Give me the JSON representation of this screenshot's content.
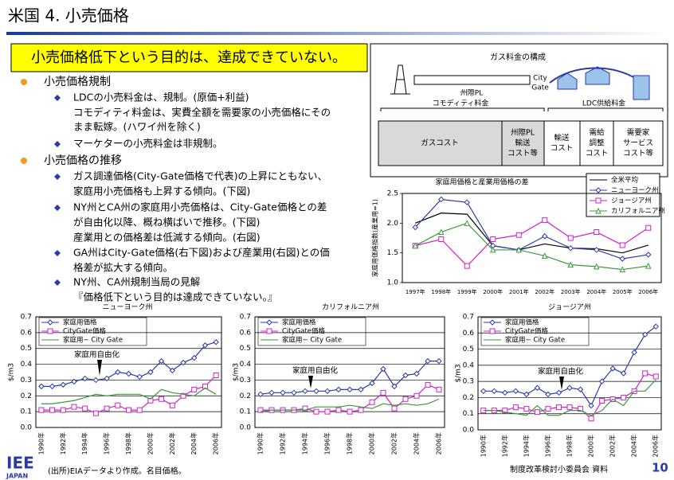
{
  "header": {
    "title": "米国 4. 小売価格",
    "headline": "小売価格低下という目的は、達成できていない。"
  },
  "bullets": [
    {
      "text": "小売価格規制",
      "sub": [
        [
          "LDCの小売料金は、規制。(原価+利益)",
          "コモディティ料金は、実費全額を需要家の小売価格にその",
          "まま転嫁。(ハワイ州を除く)"
        ],
        [
          "マーケターの小売料金は非規制。"
        ]
      ]
    },
    {
      "text": "小売価格の推移",
      "sub": [
        [
          "ガス調達価格(City-Gate価格で代表)の上昇にともない、",
          "家庭用小売価格も上昇する傾向。(下図)"
        ],
        [
          "NY州とCA州の家庭用小売価格は、City-Gate価格との差",
          "が自由化以降、概ね横ばいで推移。(下図)",
          "産業用との価格差は低減する傾向。(右図)"
        ],
        [
          "GA州はCity-Gate価格(右下図)および産業用(右図)との価",
          "格差が拡大する傾向。"
        ],
        [
          "NY州、CA州規制当局の見解",
          "『価格低下という目的は達成できていない。』"
        ]
      ]
    }
  ],
  "diagram": {
    "title": "ガス料金の構成",
    "pipe": "州際PL",
    "gate": [
      "City",
      "Gate"
    ],
    "commodity": "コモディティ料金",
    "ldc": "LDC供給料金",
    "boxes": [
      [
        "ガスコスト"
      ],
      [
        "州際PL",
        "輸送",
        "コスト等"
      ],
      [
        "輸送",
        "コスト"
      ],
      [
        "需給",
        "調整",
        "コスト"
      ],
      [
        "需要家",
        "サービス",
        "コスト等"
      ]
    ]
  },
  "chart_data": [
    {
      "type": "line",
      "title": "家庭用価格と産業用価格の差",
      "y_label": "家庭用価格指数(産業用=1)",
      "categories": [
        "1997年",
        "1998年",
        "1999年",
        "2000年",
        "2001年",
        "2002年",
        "2003年",
        "2004年",
        "2005年",
        "2006年"
      ],
      "ylim": [
        1,
        2.5
      ],
      "yticks": [
        {
          "value": 1,
          "label": "1.0"
        },
        1.5,
        {
          "value": 2,
          "label": "2.0"
        },
        2.5
      ],
      "grid": false,
      "series": [
        {
          "name": "全米平均",
          "color": "#000000",
          "marker": "none",
          "values": [
            2.0,
            2.17,
            2.15,
            1.62,
            1.55,
            1.65,
            1.58,
            1.57,
            1.5,
            1.63
          ]
        },
        {
          "name": "ニューヨーク州",
          "color": "#2b3aa8",
          "marker": "diamond",
          "values": [
            1.93,
            2.4,
            2.35,
            1.62,
            1.55,
            1.78,
            1.58,
            1.55,
            1.4,
            1.47
          ]
        },
        {
          "name": "ジョージア州",
          "color": "#d020c8",
          "marker": "square",
          "values": [
            1.62,
            1.73,
            1.28,
            1.73,
            1.8,
            2.05,
            1.75,
            1.85,
            1.63,
            1.92
          ]
        },
        {
          "name": "カリフォルニア州",
          "color": "#3a9a3a",
          "marker": "triangle",
          "values": [
            1.62,
            1.85,
            2.0,
            1.55,
            1.55,
            1.45,
            1.3,
            1.27,
            1.22,
            1.28
          ]
        }
      ]
    },
    {
      "type": "line",
      "title": "ニューヨーク州",
      "y_label": "$/m3",
      "annotation": "家庭用自由化",
      "categories": [
        "1990年",
        null,
        "1992年",
        null,
        "1994年",
        null,
        "1996年",
        null,
        "1998年",
        null,
        "2000年",
        null,
        "2002年",
        null,
        "2004年",
        null,
        "2006年"
      ],
      "ylim": [
        0,
        0.7
      ],
      "yticks": [
        {
          "value": 0,
          "label": "0.0"
        },
        0.1,
        0.2,
        0.3,
        0.4,
        0.5,
        0.6,
        0.7
      ],
      "grid": true,
      "series": [
        {
          "name": "家庭用価格",
          "color": "#2b3aa8",
          "marker": "diamond",
          "values": [
            0.26,
            0.26,
            0.27,
            0.29,
            0.31,
            0.3,
            0.31,
            0.35,
            0.34,
            0.32,
            0.35,
            0.42,
            0.36,
            0.41,
            0.44,
            0.52,
            0.54
          ]
        },
        {
          "name": "CityGate価格",
          "color": "#d020c8",
          "marker": "square",
          "values": [
            0.11,
            0.11,
            0.11,
            0.13,
            0.12,
            0.09,
            0.12,
            0.14,
            0.11,
            0.11,
            0.17,
            0.18,
            0.14,
            0.2,
            0.24,
            0.26,
            0.33
          ]
        },
        {
          "name": "家庭用−  City Gate",
          "color": "#3a9a3a",
          "marker": "none",
          "values": [
            0.15,
            0.15,
            0.16,
            0.17,
            0.19,
            0.21,
            0.2,
            0.21,
            0.21,
            0.21,
            0.18,
            0.24,
            0.22,
            0.21,
            0.2,
            0.25,
            0.21
          ]
        }
      ]
    },
    {
      "type": "line",
      "title": "カリフォルニア州",
      "y_label": "$/m3",
      "annotation": "家庭用自由化",
      "categories": [
        "1990年",
        null,
        "1992年",
        null,
        "1994年",
        null,
        "1996年",
        null,
        "1998年",
        null,
        "2000年",
        null,
        "2002年",
        null,
        "2004年",
        null,
        "2006年"
      ],
      "ylim": [
        0,
        0.7
      ],
      "yticks": [
        {
          "value": 0,
          "label": "0.0"
        },
        0.1,
        0.2,
        0.3,
        0.4,
        0.5,
        0.6,
        0.7
      ],
      "grid": true,
      "series": [
        {
          "name": "家庭用価格",
          "color": "#2b3aa8",
          "marker": "diamond",
          "values": [
            0.21,
            0.22,
            0.22,
            0.22,
            0.23,
            0.23,
            0.23,
            0.24,
            0.24,
            0.24,
            0.28,
            0.37,
            0.26,
            0.33,
            0.34,
            0.42,
            0.42
          ]
        },
        {
          "name": "CityGate価格",
          "color": "#d020c8",
          "marker": "square",
          "values": [
            0.11,
            0.11,
            0.11,
            0.11,
            0.12,
            0.1,
            0.1,
            0.11,
            0.1,
            0.11,
            0.16,
            0.22,
            0.12,
            0.18,
            0.2,
            0.27,
            0.24
          ]
        },
        {
          "name": "家庭用−  City Gate",
          "color": "#3a9a3a",
          "marker": "none",
          "values": [
            0.1,
            0.11,
            0.11,
            0.11,
            0.11,
            0.13,
            0.13,
            0.13,
            0.14,
            0.13,
            0.12,
            0.15,
            0.14,
            0.15,
            0.14,
            0.15,
            0.18
          ]
        }
      ]
    },
    {
      "type": "line",
      "title": "ジョージア州",
      "y_label": "$/m3",
      "annotation": "家庭用自由化",
      "categories": [
        "1990年",
        null,
        "1992年",
        null,
        "1994年",
        null,
        "1996年",
        null,
        "1998年",
        null,
        "2000年",
        null,
        "2002年",
        null,
        "2004年",
        null,
        "2006年"
      ],
      "ylim": [
        0,
        0.7
      ],
      "yticks": [
        {
          "value": 0,
          "label": "0.0"
        },
        0.1,
        0.2,
        0.3,
        0.4,
        0.5,
        0.6,
        0.7
      ],
      "grid": true,
      "series": [
        {
          "name": "家庭用価格",
          "color": "#2b3aa8",
          "marker": "diamond",
          "values": [
            0.24,
            0.24,
            0.23,
            0.24,
            0.22,
            0.26,
            0.22,
            0.23,
            0.26,
            0.25,
            0.15,
            0.3,
            0.38,
            0.35,
            0.48,
            0.59,
            0.64
          ]
        },
        {
          "name": "CityGate価格",
          "color": "#d020c8",
          "marker": "square",
          "values": [
            0.12,
            0.12,
            0.12,
            0.14,
            0.13,
            0.11,
            0.13,
            0.14,
            0.14,
            0.13,
            0.07,
            0.18,
            0.19,
            0.2,
            0.24,
            0.35,
            0.33
          ]
        },
        {
          "name": "家庭用−  City Gate",
          "color": "#3a9a3a",
          "marker": "none",
          "values": [
            0.12,
            0.12,
            0.11,
            0.1,
            0.09,
            0.15,
            0.09,
            0.09,
            0.12,
            0.12,
            0.09,
            0.12,
            0.19,
            0.15,
            0.24,
            0.24,
            0.31
          ]
        }
      ]
    }
  ],
  "footer": {
    "logo": "IEE",
    "logo_sub": "JAPAN",
    "source": "(出所)EIAデータより作成。名目価格。",
    "committee": "制度改革検討小委員会 資料",
    "page": "10"
  }
}
